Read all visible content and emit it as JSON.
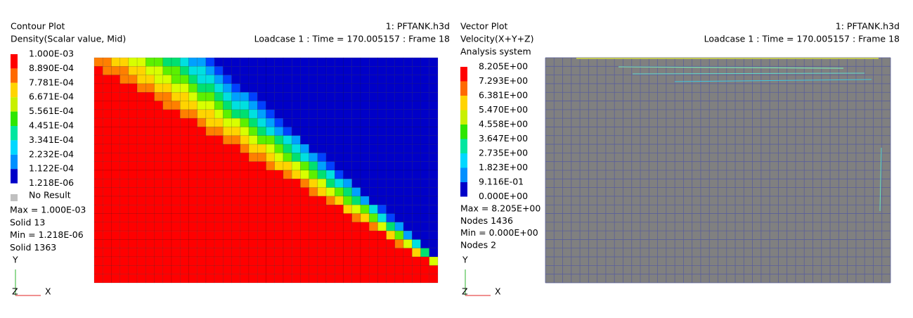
{
  "left": {
    "title": "Contour Plot",
    "subtitle": "Density(Scalar value, Mid)",
    "file": "1: PFTANK.h3d",
    "loadcase": "Loadcase 1 : Time = 170.005157 : Frame 18",
    "legend": [
      "1.000E-03",
      "8.890E-04",
      "7.781E-04",
      "6.671E-04",
      "5.561E-04",
      "4.451E-04",
      "3.341E-04",
      "2.232E-04",
      "1.122E-04",
      "1.218E-06"
    ],
    "no_result": "No Result",
    "stats": [
      "Max = 1.000E-03",
      "Solid 13",
      "Min = 1.218E-06",
      "Solid 1363"
    ],
    "axis": {
      "y": "Y",
      "z": "Z",
      "x": "X"
    }
  },
  "right": {
    "title": "Vector Plot",
    "subtitle": "Velocity(X+Y+Z)",
    "system": "Analysis system",
    "file": "1: PFTANK.h3d",
    "loadcase": "Loadcase 1 : Time = 170.005157 : Frame 18",
    "legend": [
      "8.205E+00",
      "7.293E+00",
      "6.381E+00",
      "5.470E+00",
      "4.558E+00",
      "3.647E+00",
      "2.735E+00",
      "1.823E+00",
      "9.116E-01",
      "0.000E+00"
    ],
    "stats": [
      "Max = 8.205E+00",
      "Nodes 1436",
      "Min = 0.000E+00",
      "Nodes 2"
    ],
    "axis": {
      "y": "Y",
      "z": "Z",
      "x": "X"
    }
  }
}
